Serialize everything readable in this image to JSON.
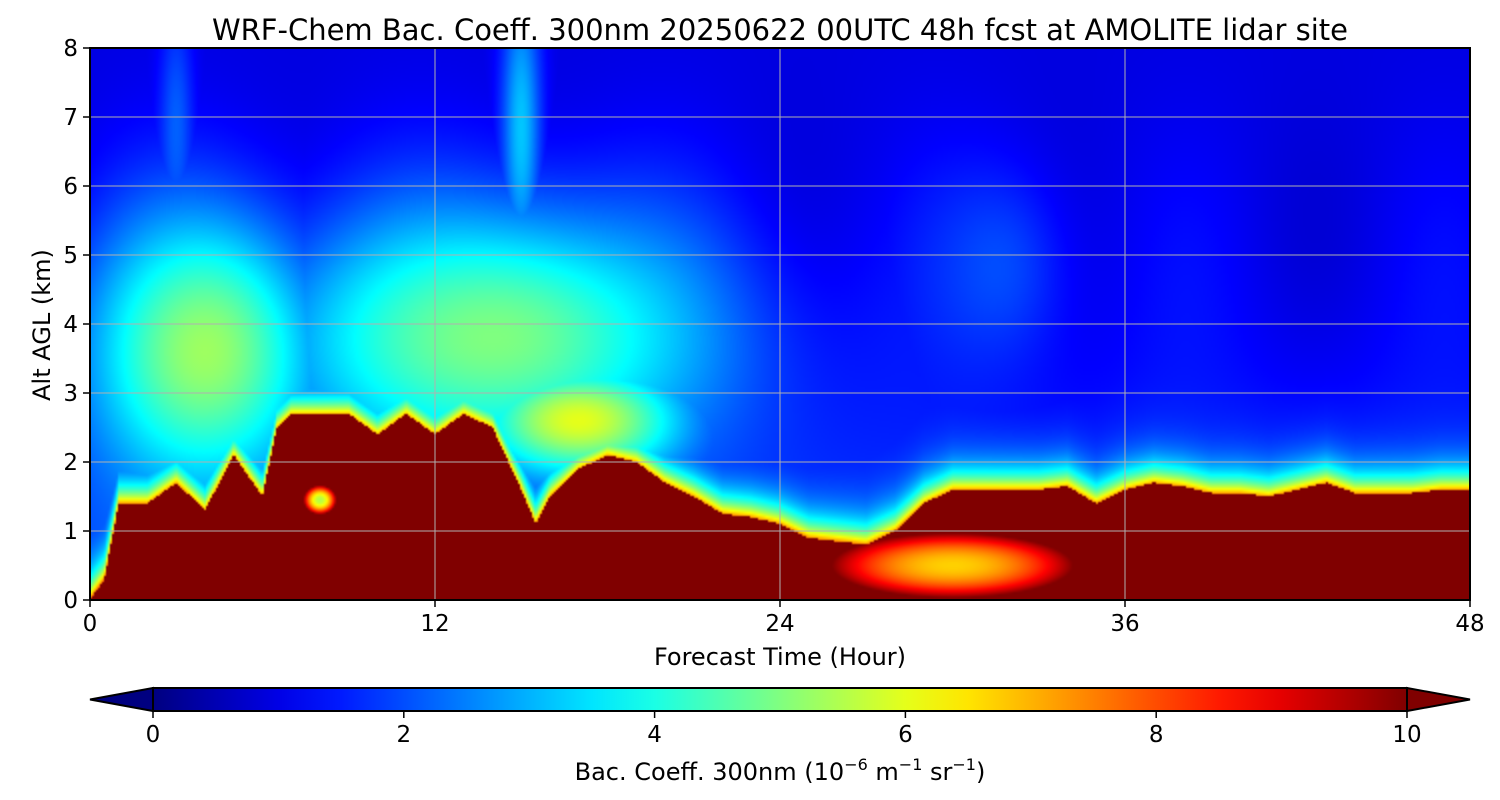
{
  "chart_data": {
    "type": "heatmap",
    "title": "WRF-Chem Bac. Coeff. 300nm  20250622 00UTC 48h fcst at AMOLITE lidar site",
    "xlabel": "Forecast Time (Hour)",
    "ylabel": "Alt AGL (km)",
    "xlim": [
      0,
      48
    ],
    "ylim": [
      0,
      8
    ],
    "x_ticks": [
      0,
      12,
      24,
      36,
      48
    ],
    "y_ticks": [
      0,
      1,
      2,
      3,
      4,
      5,
      6,
      7,
      8
    ],
    "grid": true,
    "colormap": "jet",
    "colorbar": {
      "label_main": "Bac. Coeff. 300nm  (10",
      "label_exp1": "−6",
      "label_mid": " m",
      "label_exp2": "−1",
      "label_mid2": " sr",
      "label_exp3": "−1",
      "label_end": ")",
      "range": [
        0,
        10
      ],
      "ticks": [
        0,
        2,
        4,
        6,
        8,
        10
      ],
      "extend": "both",
      "orientation": "horizontal"
    },
    "layer_top_km": {
      "x": [
        0.0,
        0.5,
        1.0,
        2.0,
        3.0,
        4.0,
        5.0,
        6.0,
        6.5,
        7.0,
        8.0,
        9.0,
        10.0,
        11.0,
        12.0,
        13.0,
        14.0,
        15.0,
        15.5,
        16.0,
        17.0,
        18.0,
        19.0,
        20.0,
        21.0,
        22.0,
        23.0,
        24.0,
        25.0,
        26.0,
        27.0,
        28.0,
        29.0,
        30.0,
        31.0,
        32.0,
        33.0,
        34.0,
        35.0,
        36.0,
        37.0,
        38.0,
        39.0,
        40.0,
        41.0,
        42.0,
        43.0,
        44.0,
        45.0,
        46.0,
        47.0,
        48.0
      ],
      "values": [
        0.0,
        0.3,
        1.4,
        1.4,
        1.7,
        1.3,
        2.1,
        1.5,
        2.5,
        2.7,
        2.7,
        2.7,
        2.4,
        2.7,
        2.4,
        2.7,
        2.5,
        1.6,
        1.1,
        1.5,
        1.9,
        2.1,
        2.0,
        1.7,
        1.5,
        1.25,
        1.2,
        1.1,
        0.9,
        0.85,
        0.8,
        1.0,
        1.4,
        1.6,
        1.6,
        1.6,
        1.6,
        1.65,
        1.4,
        1.6,
        1.7,
        1.65,
        1.55,
        1.55,
        1.5,
        1.6,
        1.7,
        1.55,
        1.55,
        1.55,
        1.6,
        1.6
      ]
    },
    "features": [
      {
        "kind": "plume",
        "x_center": 4.0,
        "y_center": 3.6,
        "x_halfwidth": 4.0,
        "y_halfwidth": 2.0,
        "peak": 5.3
      },
      {
        "kind": "plume",
        "x_center": 14.0,
        "y_center": 3.8,
        "x_halfwidth": 7.5,
        "y_halfwidth": 1.9,
        "peak": 5.0
      },
      {
        "kind": "plume",
        "x_center": 17.0,
        "y_center": 2.6,
        "x_halfwidth": 3.5,
        "y_halfwidth": 0.8,
        "peak": 6.0
      },
      {
        "kind": "plume",
        "x_center": 15.0,
        "y_center": 6.8,
        "x_halfwidth": 0.7,
        "y_halfwidth": 2.2,
        "peak": 3.2
      },
      {
        "kind": "plume",
        "x_center": 3.0,
        "y_center": 6.8,
        "x_halfwidth": 0.6,
        "y_halfwidth": 1.8,
        "peak": 2.2
      },
      {
        "kind": "plume",
        "x_center": 31.5,
        "y_center": 4.8,
        "x_halfwidth": 2.5,
        "y_halfwidth": 1.5,
        "peak": 2.0
      },
      {
        "kind": "pocket",
        "x_center": 30.0,
        "y_center": 0.5,
        "x_halfwidth": 4.5,
        "y_halfwidth": 0.5,
        "peak": 6.7
      },
      {
        "kind": "pocket",
        "x_center": 8.0,
        "y_center": 1.45,
        "x_halfwidth": 0.6,
        "y_halfwidth": 0.22,
        "peak": 5.5
      }
    ]
  }
}
